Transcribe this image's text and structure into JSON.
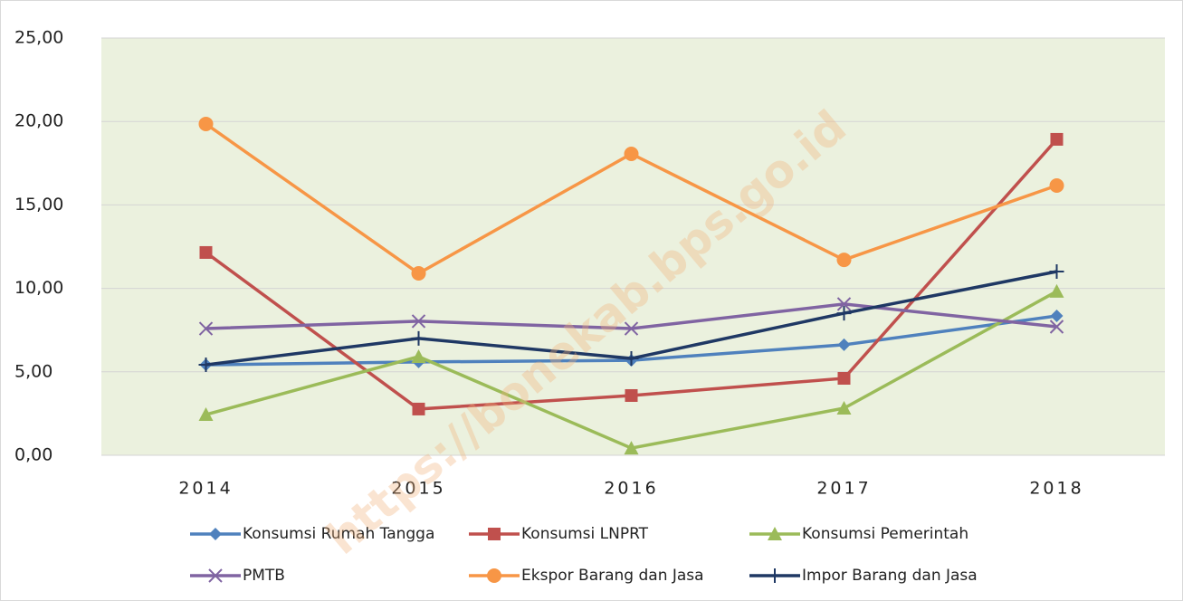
{
  "chart_data": {
    "type": "line",
    "categories": [
      "2014",
      "2015",
      "2016",
      "2017",
      "2018"
    ],
    "series": [
      {
        "name": "Konsumsi Rumah Tangga",
        "color": "#4f81bd",
        "marker": "diamond",
        "values": [
          5.42,
          5.59,
          5.69,
          6.62,
          8.35
        ]
      },
      {
        "name": "Konsumsi LNPRT",
        "color": "#c0504d",
        "marker": "square",
        "values": [
          12.15,
          2.77,
          3.58,
          4.61,
          18.93
        ]
      },
      {
        "name": "Konsumsi Pemerintah",
        "color": "#9bbb59",
        "marker": "triangle",
        "values": [
          2.44,
          5.91,
          0.43,
          2.82,
          9.82
        ]
      },
      {
        "name": "PMTB",
        "color": "#8064a2",
        "marker": "x",
        "values": [
          7.59,
          8.03,
          7.59,
          9.06,
          7.7
        ]
      },
      {
        "name": "Ekspor Barang dan Jasa",
        "color": "#f79646",
        "marker": "circle",
        "values": [
          19.85,
          10.9,
          18.06,
          11.71,
          16.16
        ]
      },
      {
        "name": "Impor Barang dan Jasa",
        "color": "#1f3864",
        "marker": "plus",
        "values": [
          5.42,
          7.0,
          5.8,
          8.51,
          11.01
        ]
      }
    ],
    "ylim": [
      0,
      25
    ],
    "yticks": [
      {
        "value": 0,
        "label": "0,00"
      },
      {
        "value": 5,
        "label": "5,00"
      },
      {
        "value": 10,
        "label": "10,00"
      },
      {
        "value": 15,
        "label": "15,00"
      },
      {
        "value": 20,
        "label": "20,00"
      },
      {
        "value": 25,
        "label": "25,00"
      }
    ],
    "grid": true,
    "plot_background": "#ebf1de",
    "watermark": "https://bonekab.bps.go.id"
  }
}
